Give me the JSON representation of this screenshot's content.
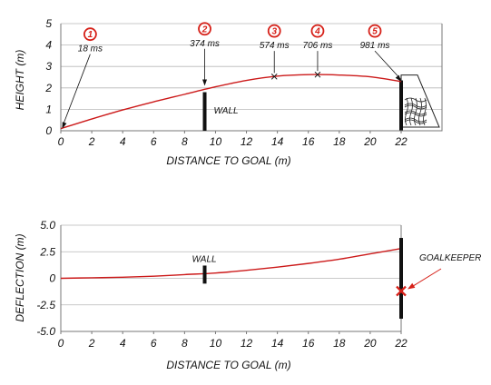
{
  "colors": {
    "trajectory": "#cc1a1a",
    "marker": "#d62018",
    "wall": "#111111",
    "axis": "#777777",
    "grid": "#b8b8b8"
  },
  "chart_data": [
    {
      "type": "line",
      "xlabel": "DISTANCE TO GOAL (m)",
      "ylabel": "HEIGHT (m)",
      "xlim": [
        0,
        22
      ],
      "ylim": [
        0,
        5
      ],
      "x_ticks": [
        "0",
        "2",
        "4",
        "6",
        "8",
        "10",
        "12",
        "14",
        "16",
        "18",
        "20",
        "22"
      ],
      "y_ticks": [
        "0",
        "1",
        "2",
        "3",
        "4",
        "5"
      ],
      "grid": "horizontal",
      "series": [
        {
          "x": [
            0,
            2,
            4,
            6,
            8,
            10,
            12,
            14,
            16,
            18,
            20,
            22
          ],
          "y": [
            0.1,
            0.55,
            0.97,
            1.35,
            1.7,
            2.05,
            2.35,
            2.55,
            2.62,
            2.6,
            2.52,
            2.3
          ]
        }
      ],
      "wall": {
        "label": "WALL",
        "x": 9.3,
        "y_bottom": 0,
        "y_top": 1.8
      },
      "goal": {
        "x": 22
      },
      "markers": [
        {
          "num": "1",
          "time": "18 ms",
          "x": 0.1,
          "y": 0.1,
          "label_x": 1.9,
          "label_y": 3.7
        },
        {
          "num": "2",
          "time": "374 ms",
          "x": 9.3,
          "y": 2.1,
          "label_x": 9.3,
          "label_y": 3.95
        },
        {
          "num": "3",
          "time": "574 ms",
          "x": 13.8,
          "y": 2.53,
          "label_x": 13.8,
          "label_y": 3.85
        },
        {
          "num": "4",
          "time": "706 ms",
          "x": 16.6,
          "y": 2.62,
          "label_x": 16.6,
          "label_y": 3.85
        },
        {
          "num": "5",
          "time": "981 ms",
          "x": 22,
          "y": 2.3,
          "label_x": 20.3,
          "label_y": 3.85
        }
      ]
    },
    {
      "type": "line",
      "xlabel": "DISTANCE TO GOAL (m)",
      "ylabel": "DEFLECTION (m)",
      "xlim": [
        0,
        22
      ],
      "ylim": [
        -5,
        5
      ],
      "x_ticks": [
        "0",
        "2",
        "4",
        "6",
        "8",
        "10",
        "12",
        "14",
        "16",
        "18",
        "20",
        "22"
      ],
      "y_ticks": [
        "5.0",
        "2.5",
        "0",
        "-2.5",
        "-5.0"
      ],
      "grid": "horizontal",
      "series": [
        {
          "x": [
            0,
            2,
            4,
            6,
            8,
            10,
            12,
            14,
            16,
            18,
            20,
            22
          ],
          "y": [
            0,
            0.05,
            0.1,
            0.2,
            0.35,
            0.5,
            0.75,
            1.05,
            1.4,
            1.8,
            2.3,
            2.8
          ]
        }
      ],
      "wall": {
        "label": "WALL",
        "x": 9.3,
        "y_bottom": -0.5,
        "y_top": 1.2
      },
      "goalkeeper": {
        "label": "GOALKEEPER",
        "x": 22,
        "y": -1.2,
        "y_bottom": -3.8,
        "y_top": 3.8
      }
    }
  ]
}
